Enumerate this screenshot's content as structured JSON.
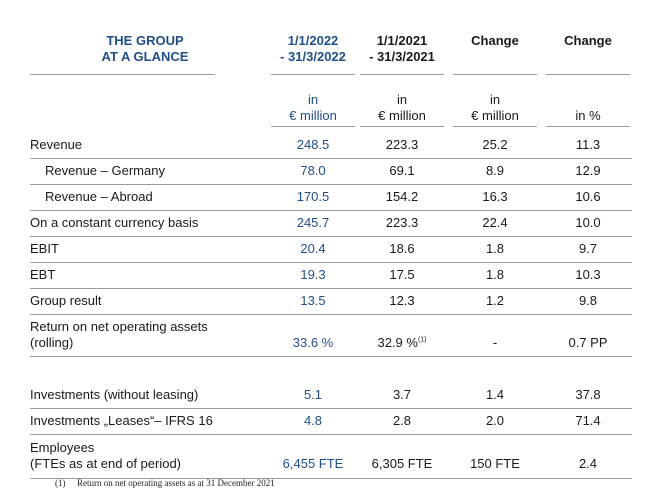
{
  "title": [
    "THE GROUP",
    "AT A GLANCE"
  ],
  "columns": [
    {
      "header": [
        "1/1/2022",
        "- 31/3/2022"
      ],
      "unit": [
        "in",
        "€ million"
      ],
      "highlight": true
    },
    {
      "header": [
        "1/1/2021",
        "- 31/3/2021"
      ],
      "unit": [
        "in",
        "€ million"
      ],
      "highlight": false
    },
    {
      "header": [
        "Change"
      ],
      "unit": [
        "in",
        "€ million"
      ],
      "highlight": false
    },
    {
      "header": [
        "Change"
      ],
      "unit": [
        "in %"
      ],
      "highlight": false
    }
  ],
  "rows": [
    {
      "label": [
        "Revenue"
      ],
      "indent": false,
      "values": [
        "248.5",
        "223.3",
        "25.2",
        "11.3"
      ]
    },
    {
      "label": [
        "Revenue – Germany"
      ],
      "indent": true,
      "values": [
        "78.0",
        "69.1",
        "8.9",
        "12.9"
      ]
    },
    {
      "label": [
        "Revenue – Abroad"
      ],
      "indent": true,
      "values": [
        "170.5",
        "154.2",
        "16.3",
        "10.6"
      ]
    },
    {
      "label": [
        "On a constant currency basis"
      ],
      "indent": false,
      "values": [
        "245.7",
        "223.3",
        "22.4",
        "10.0"
      ]
    },
    {
      "label": [
        "EBIT"
      ],
      "indent": false,
      "values": [
        "20.4",
        "18.6",
        "1.8",
        "9.7"
      ]
    },
    {
      "label": [
        "EBT"
      ],
      "indent": false,
      "values": [
        "19.3",
        "17.5",
        "1.8",
        "10.3"
      ]
    },
    {
      "label": [
        "Group result"
      ],
      "indent": false,
      "values": [
        "13.5",
        "12.3",
        "1.2",
        "9.8"
      ]
    },
    {
      "label": [
        "Return on net operating assets",
        "(rolling)"
      ],
      "indent": false,
      "values": [
        "33.6 %",
        "32.9 %",
        "-",
        "0.7 PP"
      ],
      "footnote_ref": "(1)"
    },
    {
      "label": [
        "Investments (without leasing)"
      ],
      "indent": false,
      "values": [
        "5.1",
        "3.7",
        "1.4",
        "37.8"
      ]
    },
    {
      "label": [
        "Investments „Leases“– IFRS 16"
      ],
      "indent": false,
      "values": [
        "4.8",
        "2.8",
        "2.0",
        "71.4"
      ]
    },
    {
      "label": [
        "Employees",
        "(FTEs as at end of period)"
      ],
      "indent": false,
      "values": [
        "6,455 FTE",
        "6,305 FTE",
        "150 FTE",
        "2.4"
      ]
    }
  ],
  "footnote": {
    "marker": "(1)",
    "text": "Return on net operating assets as at 31 December 2021"
  },
  "colors": {
    "accent": "#1f4e8c",
    "rule": "#9a9a9a"
  }
}
